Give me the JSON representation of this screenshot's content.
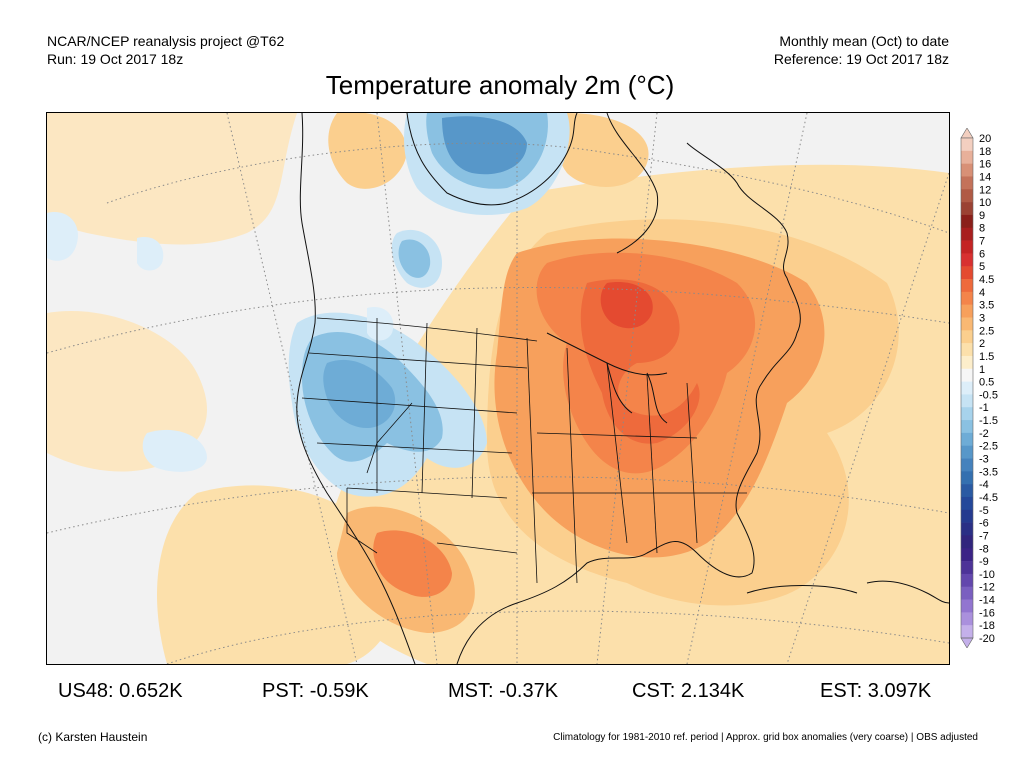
{
  "header": {
    "left_line1": "NCAR/NCEP reanalysis project @T62",
    "left_line2": "Run: 19 Oct 2017 18z",
    "right_line1": "Monthly mean (Oct) to date",
    "right_line2": "Reference: 19 Oct 2017 18z"
  },
  "title": "Temperature anomaly 2m (°C)",
  "colorbar": {
    "labels": [
      "20",
      "18",
      "16",
      "14",
      "12",
      "10",
      "9",
      "8",
      "7",
      "6",
      "5",
      "4.5",
      "4",
      "3.5",
      "3",
      "2.5",
      "2",
      "1.5",
      "1",
      "0.5",
      "-0.5",
      "-1",
      "-1.5",
      "-2",
      "-2.5",
      "-3",
      "-3.5",
      "-4",
      "-4.5",
      "-5",
      "-6",
      "-7",
      "-8",
      "-9",
      "-10",
      "-12",
      "-14",
      "-16",
      "-18",
      "-20"
    ],
    "colors": [
      "#f3cfc0",
      "#e8b09a",
      "#d89076",
      "#c4725a",
      "#b05a45",
      "#9b4233",
      "#8a1f1a",
      "#a81e1e",
      "#c42424",
      "#d83030",
      "#e44a30",
      "#ee6a3c",
      "#f4844a",
      "#f7a05c",
      "#f9b873",
      "#fbcf8e",
      "#fce0ab",
      "#fdeecb",
      "#f6f6f6",
      "#ddeef9",
      "#c6e3f4",
      "#a7d3ec",
      "#8ac1e2",
      "#6eacd6",
      "#5797c9",
      "#4582bd",
      "#3470b0",
      "#2a5aa3",
      "#24489a",
      "#253a8f",
      "#2a2f85",
      "#31257d",
      "#3b2386",
      "#4d3398",
      "#6347ad",
      "#7a5fc0",
      "#9275d0",
      "#aa90dd",
      "#c4b0ea"
    ]
  },
  "stats": {
    "us48": "US48: 0.652K",
    "pst": "PST: -0.59K",
    "mst": "MST: -0.37K",
    "cst": "CST: 2.134K",
    "est": "EST: 3.097K"
  },
  "footer": {
    "copyright": "(c) Karsten Haustein",
    "note": "Climatology for 1981-2010 ref. period | Approx. grid box anomalies (very coarse) | OBS adjusted"
  },
  "map": {
    "palette": {
      "land_line": "#111111",
      "grid_line": "#8a8a8a",
      "neutral": "#f0f0f0"
    }
  }
}
